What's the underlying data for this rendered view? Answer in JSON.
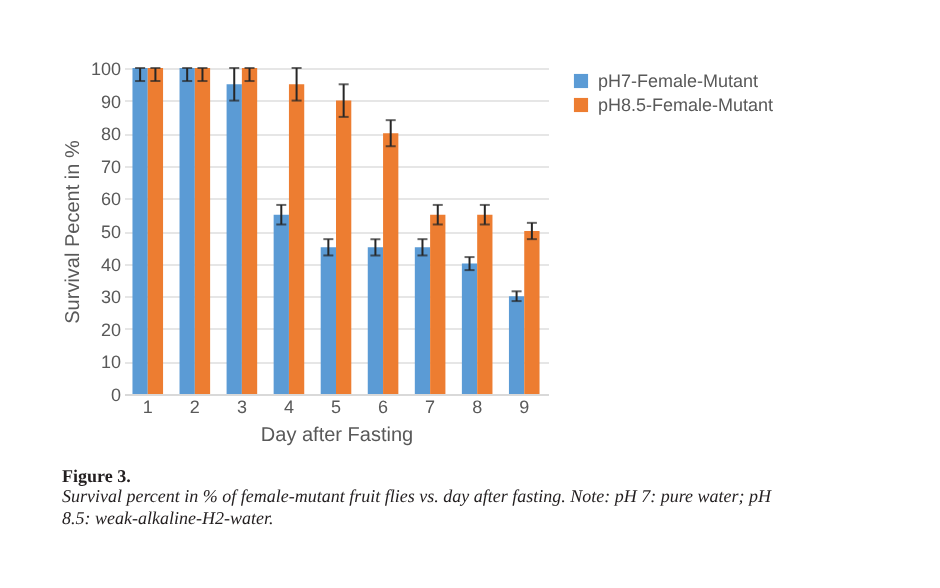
{
  "chart_data": {
    "type": "bar",
    "xlabel": "Day after Fasting",
    "ylabel": "Survival Pecent in %",
    "categories": [
      "1",
      "2",
      "3",
      "4",
      "5",
      "6",
      "7",
      "8",
      "9"
    ],
    "series": [
      {
        "name": "pH7-Female-Mutant",
        "color": "#5b9bd5",
        "values": [
          100,
          100,
          95,
          55,
          45,
          45,
          45,
          40,
          30
        ],
        "errors": [
          [
            96,
            100
          ],
          [
            96,
            100
          ],
          5,
          3,
          2.5,
          2.5,
          2.5,
          2,
          1.5
        ]
      },
      {
        "name": "pH8.5-Female-Mutant",
        "color": "#ed7d31",
        "values": [
          100,
          100,
          100,
          95,
          90,
          80,
          55,
          55,
          50
        ],
        "errors": [
          [
            96,
            100
          ],
          [
            96,
            100
          ],
          [
            96,
            100
          ],
          5,
          5,
          4,
          3,
          3,
          2.5
        ]
      }
    ],
    "ylim": [
      0,
      100
    ],
    "yticks": [
      0,
      10,
      20,
      30,
      40,
      50,
      60,
      70,
      80,
      90,
      100
    ],
    "grid": "y",
    "legend": "right",
    "annotations": [
      "Figure 3.",
      "Survival percent in % of female-mutant fruit flies vs. day after fasting. Note: pH 7: pure water; pH 8.5: weak-alkaline-H2-water."
    ]
  }
}
